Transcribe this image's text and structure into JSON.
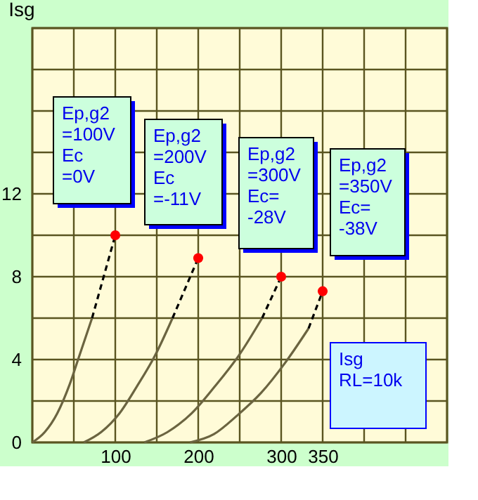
{
  "chart_data": {
    "type": "line",
    "ylabel": "Isg",
    "xlim": [
      0,
      500
    ],
    "ylim": [
      0,
      20
    ],
    "xticks": [
      {
        "value": 0,
        "label": null
      },
      {
        "value": 50,
        "label": null
      },
      100,
      {
        "value": 150,
        "label": null
      },
      200,
      {
        "value": 250,
        "label": null
      },
      300,
      350,
      {
        "value": 400,
        "label": null
      },
      {
        "value": 450,
        "label": null
      },
      {
        "value": 500,
        "label": null
      }
    ],
    "yticks": [
      0,
      {
        "value": 2,
        "label": null
      },
      4,
      {
        "value": 6,
        "label": null
      },
      8,
      {
        "value": 10,
        "label": null
      },
      12,
      {
        "value": 14,
        "label": null
      },
      {
        "value": 16,
        "label": null
      },
      {
        "value": 18,
        "label": null
      },
      {
        "value": 20,
        "label": null
      }
    ],
    "grid": true,
    "series": [
      {
        "color": "#6b6440",
        "line_style": "solid",
        "x": [
          0,
          15,
          30,
          45,
          56,
          72
        ],
        "values": [
          0,
          0.5,
          1.4,
          2.8,
          4.1,
          6
        ]
      },
      {
        "color": "#000000",
        "line_style": "dashed",
        "x": [
          72,
          100
        ],
        "values": [
          6,
          10
        ]
      },
      {
        "color": "#6b6440",
        "line_style": "solid",
        "x": [
          62,
          83,
          105,
          126,
          148,
          169
        ],
        "values": [
          0,
          0.5,
          1.4,
          2.7,
          4.2,
          6
        ]
      },
      {
        "color": "#000000",
        "line_style": "dashed",
        "x": [
          169,
          200
        ],
        "values": [
          6,
          8.9
        ]
      },
      {
        "color": "#6b6440",
        "line_style": "solid",
        "x": [
          135,
          163,
          192,
          220,
          249,
          277
        ],
        "values": [
          0,
          0.5,
          1.4,
          2.7,
          4.2,
          6
        ]
      },
      {
        "color": "#000000",
        "line_style": "dashed",
        "x": [
          277,
          300
        ],
        "values": [
          6,
          8
        ]
      },
      {
        "color": "#6b6440",
        "line_style": "solid",
        "x": [
          190,
          219,
          247,
          276,
          304,
          333
        ],
        "values": [
          0,
          0.4,
          1.3,
          2.4,
          3.8,
          5.5
        ]
      },
      {
        "color": "#000000",
        "line_style": "dashed",
        "x": [
          333,
          350
        ],
        "values": [
          5.5,
          7.3
        ]
      },
      {
        "type": "scatter",
        "marker": "circle",
        "color": "#ff0000",
        "x": [
          100,
          200,
          300,
          350
        ],
        "values": [
          10,
          8.9,
          8,
          7.3
        ]
      }
    ],
    "annotations": [
      "Ep,g2\n=100V\nEc\n=0V",
      "Ep,g2\n=200V\nEc\n=-11V",
      "Ep,g2\n=300V\nEc=\n-28V",
      "Ep,g2\n=350V\nEc=\n-38V",
      "Isg\nRL=10k"
    ]
  }
}
